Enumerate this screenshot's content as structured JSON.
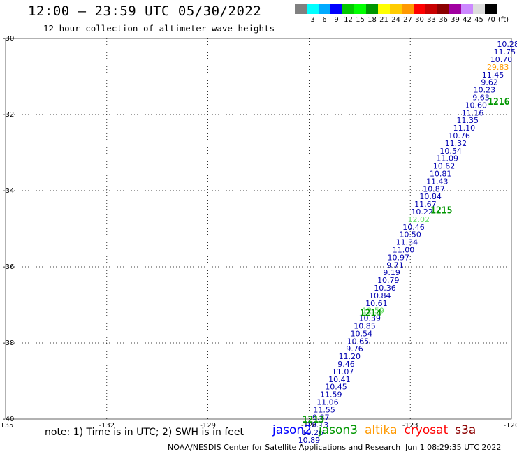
{
  "header": {
    "title": "12:00 – 23:59 UTC 05/30/2022",
    "subtitle": "12 hour collection of altimeter wave heights"
  },
  "colorbar": {
    "unit": "(ft)",
    "swatches": [
      {
        "color": "#808080",
        "label": ""
      },
      {
        "color": "#00ffff",
        "label": "3"
      },
      {
        "color": "#00aaff",
        "label": "6"
      },
      {
        "color": "#0000ff",
        "label": "9"
      },
      {
        "color": "#00c800",
        "label": "12"
      },
      {
        "color": "#00ff00",
        "label": "15"
      },
      {
        "color": "#009600",
        "label": "18"
      },
      {
        "color": "#ffff00",
        "label": "21"
      },
      {
        "color": "#ffcc00",
        "label": "24"
      },
      {
        "color": "#ff9900",
        "label": "27"
      },
      {
        "color": "#ff0000",
        "label": "30"
      },
      {
        "color": "#c80000",
        "label": "33"
      },
      {
        "color": "#8b0000",
        "label": "36"
      },
      {
        "color": "#a000a0",
        "label": "39"
      },
      {
        "color": "#cc88ff",
        "label": "42"
      },
      {
        "color": "#dddddd",
        "label": "45"
      },
      {
        "color": "#000000",
        "label": "70"
      }
    ]
  },
  "map": {
    "lon_ticks": [
      "-135",
      "-132",
      "-129",
      "-126",
      "-123",
      "-120"
    ],
    "lat_ticks": [
      "-30",
      "-32",
      "-34",
      "-36",
      "-38",
      "-40"
    ],
    "lon_range": [
      -135,
      -120
    ],
    "lat_range": [
      -30,
      -40
    ],
    "grid": true,
    "passes": [
      {
        "id": "1216",
        "lat": -31.65,
        "lon": -120.7
      },
      {
        "id": "1215",
        "lat": -34.5,
        "lon": -122.4
      },
      {
        "id": "1214",
        "lat": -37.2,
        "lon": -124.5
      },
      {
        "id": "1213",
        "lat": -40.0,
        "lon": -126.2
      }
    ],
    "observations": [
      {
        "swh": "10.28",
        "lat": -30.15,
        "lon": -120.1,
        "color": "#0000b0"
      },
      {
        "swh": "11.75",
        "lat": -30.35,
        "lon": -120.2,
        "color": "#0000b0"
      },
      {
        "swh": "10.70",
        "lat": -30.55,
        "lon": -120.3,
        "color": "#0000b0"
      },
      {
        "swh": "29.83",
        "lat": -30.75,
        "lon": -120.4,
        "color": "#ff9900"
      },
      {
        "swh": "11.45",
        "lat": -30.95,
        "lon": -120.55,
        "color": "#0000b0"
      },
      {
        "swh": "9.62",
        "lat": -31.15,
        "lon": -120.65,
        "color": "#0000b0"
      },
      {
        "swh": "10.23",
        "lat": -31.35,
        "lon": -120.8,
        "color": "#0000b0"
      },
      {
        "swh": "9.63",
        "lat": -31.55,
        "lon": -120.9,
        "color": "#0000b0"
      },
      {
        "swh": "10.60",
        "lat": -31.75,
        "lon": -121.05,
        "color": "#0000b0"
      },
      {
        "swh": "11.16",
        "lat": -31.95,
        "lon": -121.15,
        "color": "#0000b0"
      },
      {
        "swh": "11.35",
        "lat": -32.15,
        "lon": -121.3,
        "color": "#0000b0"
      },
      {
        "swh": "11.10",
        "lat": -32.35,
        "lon": -121.4,
        "color": "#0000b0"
      },
      {
        "swh": "10.76",
        "lat": -32.55,
        "lon": -121.55,
        "color": "#0000b0"
      },
      {
        "swh": "11.32",
        "lat": -32.75,
        "lon": -121.65,
        "color": "#0000b0"
      },
      {
        "swh": "10.54",
        "lat": -32.95,
        "lon": -121.8,
        "color": "#0000b0"
      },
      {
        "swh": "11.09",
        "lat": -33.15,
        "lon": -121.9,
        "color": "#0000b0"
      },
      {
        "swh": "10.62",
        "lat": -33.35,
        "lon": -122.0,
        "color": "#0000b0"
      },
      {
        "swh": "10.81",
        "lat": -33.55,
        "lon": -122.1,
        "color": "#0000b0"
      },
      {
        "swh": "11.43",
        "lat": -33.75,
        "lon": -122.2,
        "color": "#0000b0"
      },
      {
        "swh": "10.87",
        "lat": -33.95,
        "lon": -122.3,
        "color": "#0000b0"
      },
      {
        "swh": "10.84",
        "lat": -34.15,
        "lon": -122.4,
        "color": "#0000b0"
      },
      {
        "swh": "11.67",
        "lat": -34.35,
        "lon": -122.55,
        "color": "#0000b0"
      },
      {
        "swh": "10.22",
        "lat": -34.55,
        "lon": -122.65,
        "color": "#0000b0"
      },
      {
        "swh": "12.02",
        "lat": -34.75,
        "lon": -122.75,
        "color": "#66dd66"
      },
      {
        "swh": "10.46",
        "lat": -34.95,
        "lon": -122.9,
        "color": "#0000b0"
      },
      {
        "swh": "10.50",
        "lat": -35.15,
        "lon": -123.0,
        "color": "#0000b0"
      },
      {
        "swh": "11.34",
        "lat": -35.35,
        "lon": -123.1,
        "color": "#0000b0"
      },
      {
        "swh": "11.00",
        "lat": -35.55,
        "lon": -123.2,
        "color": "#0000b0"
      },
      {
        "swh": "10.97",
        "lat": -35.75,
        "lon": -123.35,
        "color": "#0000b0"
      },
      {
        "swh": "9.71",
        "lat": -35.95,
        "lon": -123.45,
        "color": "#0000b0"
      },
      {
        "swh": "9.19",
        "lat": -36.15,
        "lon": -123.55,
        "color": "#0000b0"
      },
      {
        "swh": "10.79",
        "lat": -36.35,
        "lon": -123.65,
        "color": "#0000b0"
      },
      {
        "swh": "10.36",
        "lat": -36.55,
        "lon": -123.75,
        "color": "#0000b0"
      },
      {
        "swh": "10.84",
        "lat": -36.75,
        "lon": -123.9,
        "color": "#0000b0"
      },
      {
        "swh": "10.61",
        "lat": -36.95,
        "lon": -124.0,
        "color": "#0000b0"
      },
      {
        "swh": "12.59",
        "lat": -37.15,
        "lon": -124.1,
        "color": "#66dd66"
      },
      {
        "swh": "10.39",
        "lat": -37.35,
        "lon": -124.2,
        "color": "#0000b0"
      },
      {
        "swh": "10.85",
        "lat": -37.55,
        "lon": -124.35,
        "color": "#0000b0"
      },
      {
        "swh": "10.54",
        "lat": -37.75,
        "lon": -124.45,
        "color": "#0000b0"
      },
      {
        "swh": "10.65",
        "lat": -37.95,
        "lon": -124.55,
        "color": "#0000b0"
      },
      {
        "swh": "9.76",
        "lat": -38.15,
        "lon": -124.65,
        "color": "#0000b0"
      },
      {
        "swh": "11.20",
        "lat": -38.35,
        "lon": -124.8,
        "color": "#0000b0"
      },
      {
        "swh": "9.46",
        "lat": -38.55,
        "lon": -124.9,
        "color": "#0000b0"
      },
      {
        "swh": "11.07",
        "lat": -38.75,
        "lon": -125.0,
        "color": "#0000b0"
      },
      {
        "swh": "10.41",
        "lat": -38.95,
        "lon": -125.1,
        "color": "#0000b0"
      },
      {
        "swh": "10.45",
        "lat": -39.15,
        "lon": -125.2,
        "color": "#0000b0"
      },
      {
        "swh": "11.59",
        "lat": -39.35,
        "lon": -125.35,
        "color": "#0000b0"
      },
      {
        "swh": "11.06",
        "lat": -39.55,
        "lon": -125.45,
        "color": "#0000b0"
      },
      {
        "swh": "11.55",
        "lat": -39.75,
        "lon": -125.55,
        "color": "#0000b0"
      },
      {
        "swh": "9.87",
        "lat": -39.95,
        "lon": -125.65,
        "color": "#0000b0"
      },
      {
        "swh": "10.13",
        "lat": -40.15,
        "lon": -125.75,
        "color": "#0000b0"
      },
      {
        "swh": "10.26",
        "lat": -40.35,
        "lon": -125.9,
        "color": "#0000b0"
      },
      {
        "swh": "10.89",
        "lat": -40.55,
        "lon": -126.0,
        "color": "#0000b0"
      }
    ]
  },
  "footer": {
    "note": "note: 1) Time is in UTC; 2) SWH is in feet",
    "legend": [
      {
        "name": "jason2",
        "color": "#0000ff"
      },
      {
        "name": "jason3",
        "color": "#009600"
      },
      {
        "name": "altika",
        "color": "#ff9900"
      },
      {
        "name": "cryosat",
        "color": "#ff0000"
      },
      {
        "name": "s3a",
        "color": "#8b0000"
      }
    ],
    "credit": "NOAA/NESDIS Center for Satellite Applications and Research",
    "timestamp": "Jun  1 08:29:35 UTC 2022"
  }
}
